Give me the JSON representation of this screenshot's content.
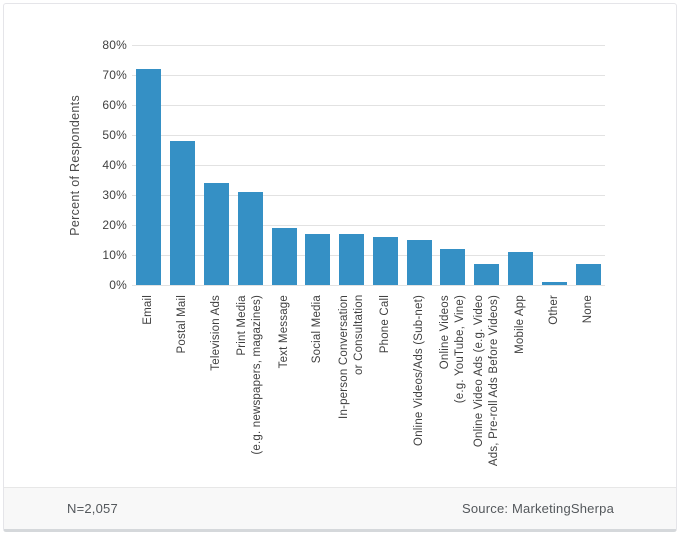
{
  "chart_data": {
    "type": "bar",
    "title": "",
    "categories": [
      "Email",
      "Postal Mail",
      "Television Ads",
      "Print Media\n(e.g. newspapers, magazines)",
      "Text Message",
      "Social Media",
      "In-person Conversation\nor Consultation",
      "Phone Call",
      "Online Videos/Ads (Sub-net)",
      "Online Videos\n(e.g. YouTube, Vine)",
      "Online Video Ads (e.g. Video\nAds, Pre-roll Ads Before Videos)",
      "Mobile App",
      "Other",
      "None"
    ],
    "values": [
      72,
      48,
      34,
      31,
      19,
      17,
      17,
      16,
      15,
      12,
      7,
      11,
      1,
      7
    ],
    "xlabel": "",
    "ylabel": "Percent of Respondents",
    "ylim": [
      0,
      80
    ],
    "y_tick_labels": [
      "0%",
      "10%",
      "20%",
      "30%",
      "40%",
      "50%",
      "60%",
      "70%",
      "80%"
    ],
    "grid": true,
    "legend": "none"
  },
  "footer": {
    "sample_size": "N=2,057",
    "source": "Source: MarketingSherpa"
  },
  "colors": {
    "bar": "#3590c5",
    "grid": "#e2e2e2",
    "text": "#3f3f3f",
    "footer_bg": "#f8f8f8",
    "card_border": "#e5e5e9",
    "bottom_strip": "#d5d8db"
  }
}
